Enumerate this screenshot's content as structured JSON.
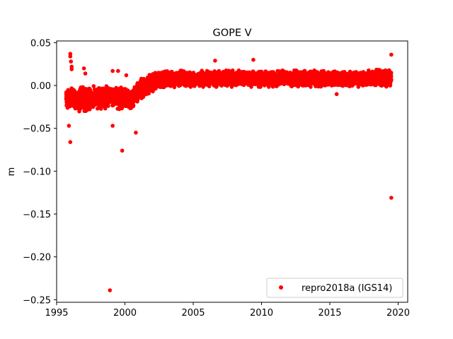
{
  "chart_data": {
    "type": "scatter",
    "title": "GOPE V",
    "xlabel": "",
    "ylabel": "m",
    "xlim": [
      1995.0,
      2020.7
    ],
    "ylim": [
      -0.253,
      0.052
    ],
    "xticks": [
      1995,
      2000,
      2005,
      2010,
      2015,
      2020
    ],
    "yticks": [
      0.05,
      0.0,
      -0.05,
      -0.1,
      -0.15,
      -0.2,
      -0.25
    ],
    "ytick_labels": [
      "0.05",
      "0.00",
      "−0.05",
      "−0.10",
      "−0.15",
      "−0.20",
      "−0.25"
    ],
    "grid": false,
    "legend_position": "lower-right",
    "series": [
      {
        "name": "repro2018a (IGS14)",
        "color": "#ff0000",
        "marker": "circle",
        "trend": {
          "x": [
            1995.7,
            1996.5,
            1997.5,
            1998.5,
            1999.5,
            2000.5,
            2001.0,
            2001.5,
            2002.0,
            2002.5,
            2003.0,
            2004.0,
            2006.0,
            2008.0,
            2010.0,
            2012.0,
            2014.0,
            2016.0,
            2018.0,
            2019.5
          ],
          "y": [
            -0.014,
            -0.016,
            -0.015,
            -0.014,
            -0.013,
            -0.017,
            -0.005,
            0.0,
            0.004,
            0.006,
            0.007,
            0.008,
            0.008,
            0.008,
            0.008,
            0.008,
            0.008,
            0.008,
            0.008,
            0.01
          ],
          "spread": [
            0.008,
            0.009,
            0.009,
            0.008,
            0.009,
            0.008,
            0.008,
            0.007,
            0.007,
            0.006,
            0.006,
            0.006,
            0.006,
            0.006,
            0.006,
            0.006,
            0.006,
            0.006,
            0.006,
            0.007
          ]
        },
        "outliers": [
          {
            "x": 1996.0,
            "y": 0.037
          },
          {
            "x": 1996.0,
            "y": 0.034
          },
          {
            "x": 1996.05,
            "y": 0.028
          },
          {
            "x": 1996.1,
            "y": 0.022
          },
          {
            "x": 1996.1,
            "y": 0.019
          },
          {
            "x": 1995.9,
            "y": -0.047
          },
          {
            "x": 1996.0,
            "y": -0.066
          },
          {
            "x": 1997.0,
            "y": 0.02
          },
          {
            "x": 1997.1,
            "y": 0.014
          },
          {
            "x": 1998.9,
            "y": -0.239
          },
          {
            "x": 1999.1,
            "y": 0.017
          },
          {
            "x": 1999.1,
            "y": -0.047
          },
          {
            "x": 1999.5,
            "y": 0.017
          },
          {
            "x": 1999.8,
            "y": -0.076
          },
          {
            "x": 2000.1,
            "y": 0.012
          },
          {
            "x": 2000.8,
            "y": -0.055
          },
          {
            "x": 2006.6,
            "y": 0.029
          },
          {
            "x": 2009.4,
            "y": 0.03
          },
          {
            "x": 2015.5,
            "y": -0.01
          },
          {
            "x": 2019.5,
            "y": 0.036
          },
          {
            "x": 2019.5,
            "y": -0.131
          }
        ]
      }
    ]
  }
}
